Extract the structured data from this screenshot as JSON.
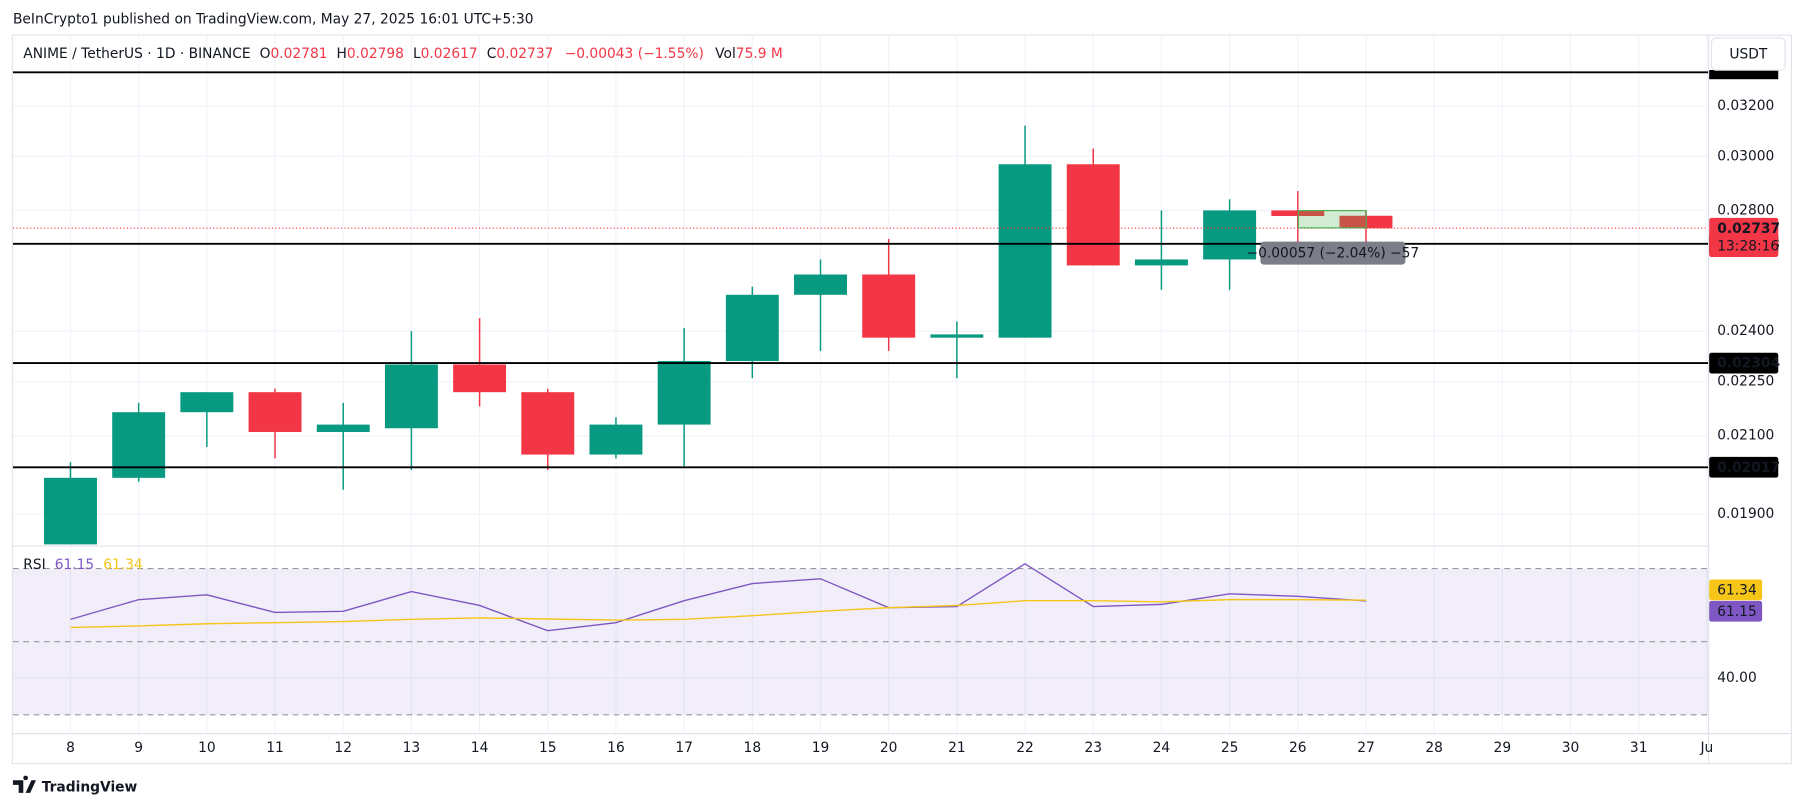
{
  "header": {
    "published": "BeInCrypto1 published on TradingView.com, May 27, 2025 16:01 UTC+5:30"
  },
  "footer": {
    "brand": "TradingView"
  },
  "chart_data": [
    {
      "type": "candlestick",
      "title": "ANIME / TetherUS · 1D · BINANCE",
      "currency": "USDT",
      "categories": [
        "8",
        "9",
        "10",
        "11",
        "12",
        "13",
        "14",
        "15",
        "16",
        "17",
        "18",
        "19",
        "20",
        "21",
        "22",
        "23",
        "24",
        "25",
        "26",
        "27",
        "28",
        "29",
        "30",
        "31",
        "Ju"
      ],
      "open": [
        0.0181,
        0.0199,
        0.02164,
        0.0222,
        0.0211,
        0.0212,
        0.023,
        0.0222,
        0.0205,
        0.0213,
        0.0231,
        0.02514,
        0.0258,
        0.0238,
        0.0238,
        0.0297,
        0.0261,
        0.0263,
        0.028,
        0.02781,
        null,
        null,
        null,
        null,
        null
      ],
      "high": [
        0.0203,
        0.0219,
        0.0222,
        0.0223,
        0.0219,
        0.024,
        0.0244,
        0.0223,
        0.0215,
        0.0241,
        0.0254,
        0.0263,
        0.027,
        0.0243,
        0.0312,
        0.0303,
        0.028,
        0.0284,
        0.0287,
        0.02798,
        null,
        null,
        null,
        null,
        null
      ],
      "low": [
        0.018,
        0.0198,
        0.0207,
        0.0204,
        0.0196,
        0.0201,
        0.0218,
        0.0201,
        0.0204,
        0.0202,
        0.0226,
        0.0234,
        0.0234,
        0.0226,
        0.0238,
        0.0261,
        0.0253,
        0.0253,
        0.0262,
        0.02617,
        null,
        null,
        null,
        null,
        null
      ],
      "close": [
        0.0199,
        0.02164,
        0.0222,
        0.0211,
        0.0213,
        0.023,
        0.0222,
        0.0205,
        0.0213,
        0.0231,
        0.02514,
        0.0258,
        0.0238,
        0.0239,
        0.0297,
        0.0261,
        0.0263,
        0.028,
        0.0278,
        0.02737,
        null,
        null,
        null,
        null,
        null
      ],
      "ohlc_labels": [
        "O",
        "H",
        "L",
        "C"
      ],
      "change": "−0.00043 (−1.55%)",
      "volume_label": "Vol",
      "volume": "75.9 M",
      "color_up": "#089981",
      "color_down": "#f23645",
      "log": true,
      "grid": true,
      "ylim": [
        0.01828,
        0.035
      ],
      "yticks": [
        {
          "value": 0.032,
          "label": "0.03200"
        },
        {
          "value": 0.03,
          "label": "0.03000"
        },
        {
          "value": 0.028,
          "label": "0.02800"
        },
        {
          "value": 0.024,
          "label": "0.02400"
        },
        {
          "value": 0.0225,
          "label": "0.02250"
        },
        {
          "value": 0.021,
          "label": "0.02100"
        },
        {
          "value": 0.019,
          "label": "0.01900"
        }
      ],
      "levels": [
        0.02683,
        0.02304,
        0.02017
      ],
      "top_level": 0.0334,
      "countdown": "13:28:16",
      "measure": "−0.00057 (−2.04%) −57"
    },
    {
      "type": "line",
      "title": "RSI",
      "series": [
        {
          "color": "#7e57c2",
          "values": [
            56.1,
            61.5,
            62.8,
            58.0,
            58.3,
            63.7,
            59.9,
            53.0,
            55.2,
            61.2,
            65.9,
            67.2,
            59.3,
            59.6,
            71.3,
            59.6,
            60.2,
            63.1,
            62.4,
            61.15,
            null,
            null,
            null,
            null,
            null
          ]
        },
        {
          "color": "#f5c518",
          "values": [
            53.9,
            54.3,
            54.9,
            55.2,
            55.5,
            56.1,
            56.5,
            56.2,
            55.9,
            56.1,
            57.1,
            58.3,
            59.3,
            59.9,
            61.2,
            61.2,
            60.9,
            61.5,
            61.5,
            61.34,
            null,
            null,
            null,
            null,
            null
          ]
        }
      ],
      "ylim": [
        25,
        76
      ],
      "yticks": [
        {
          "value": 40,
          "label": "40.00"
        }
      ],
      "levels": [
        70,
        50,
        30
      ],
      "band_color": "#7e57c2"
    }
  ]
}
